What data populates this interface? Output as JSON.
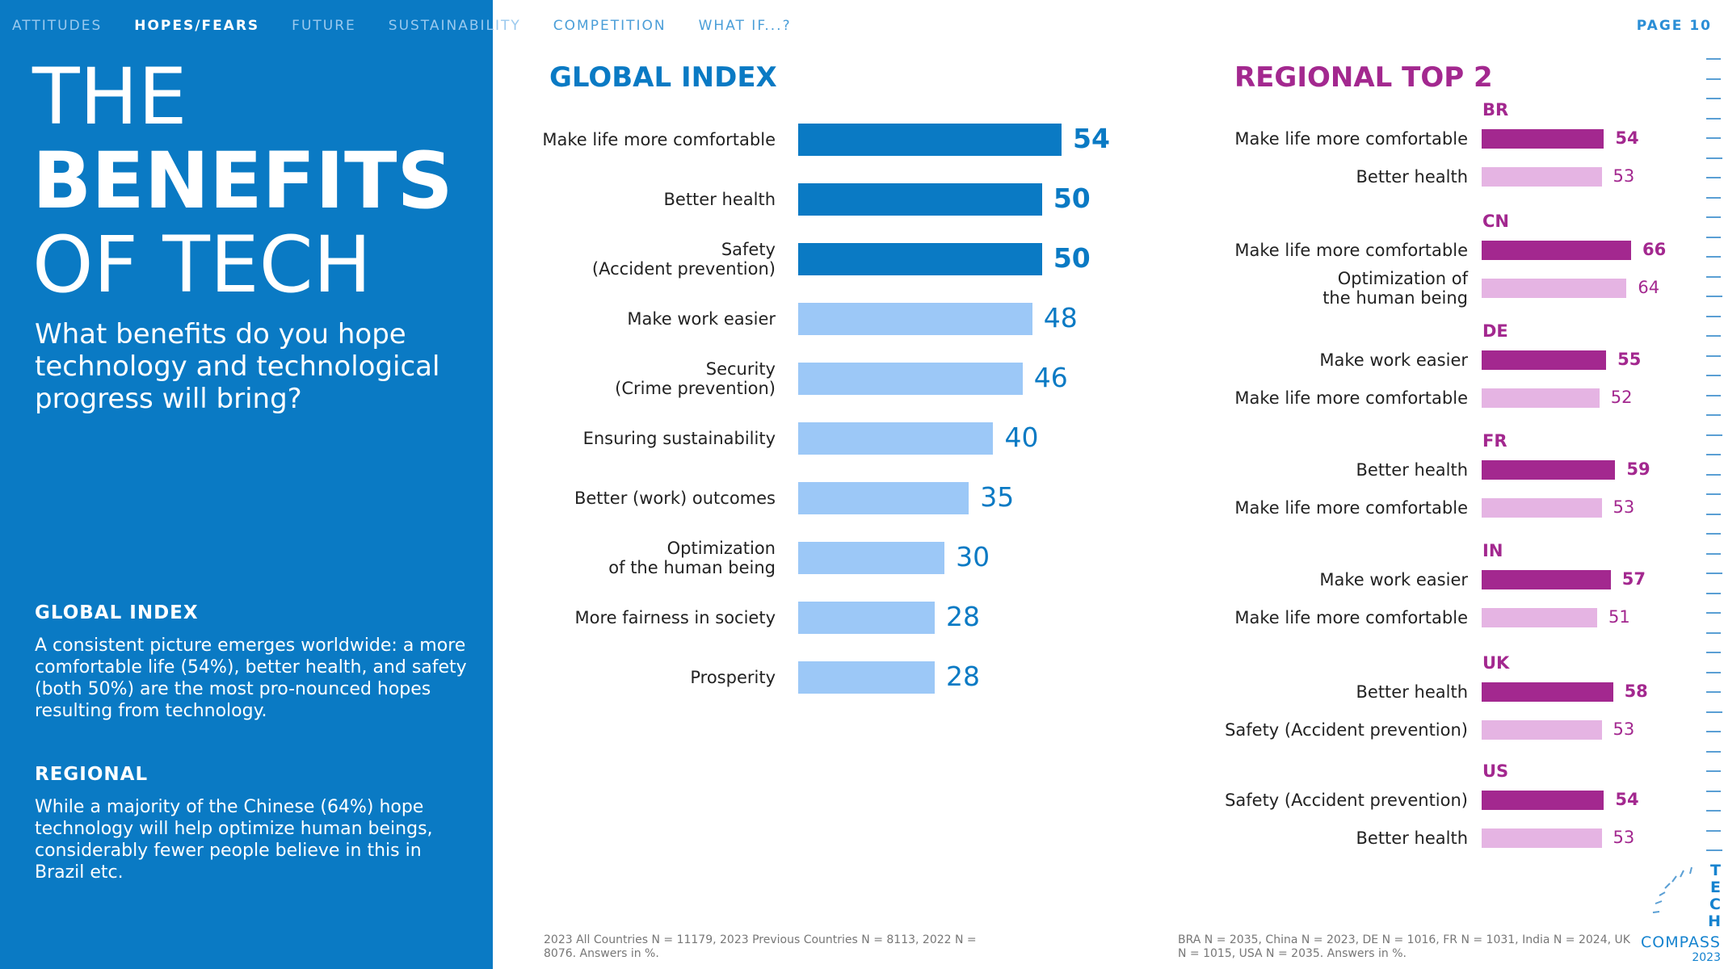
{
  "nav": {
    "items": [
      "ATTITUDES",
      "HOPES/FEARS",
      "FUTURE",
      "SUSTAINABILITY",
      "COMPETITION",
      "WHAT IF...?"
    ],
    "active_index": 1,
    "page_label": "PAGE",
    "page_number": "10"
  },
  "left": {
    "title_line1": "THE",
    "title_line2": "BENEFITS",
    "title_line3": "OF TECH",
    "subtitle": "What benefits do you hope technology and technological progress will bring?",
    "global_heading": "GLOBAL INDEX",
    "global_text": "A consistent picture emerges worldwide: a more comfortable life (54%), better health, and safety (both 50%) are the most pro-nounced hopes resulting from technology.",
    "regional_heading": "REGIONAL",
    "regional_text": "While a majority of the Chinese (64%) hope technology will help optimize human beings, considerably fewer people believe in this in Brazil etc."
  },
  "colors": {
    "blue_dark": "#0a7ac4",
    "blue_light": "#9cc8f7",
    "purple_dark": "#a3288f",
    "purple_light": "#e5b4e3"
  },
  "chart_data": [
    {
      "type": "bar",
      "title": "GLOBAL INDEX",
      "orientation": "horizontal",
      "categories": [
        "Make life more comfortable",
        "Better health",
        "Safety\n(Accident prevention)",
        "Make work easier",
        "Security\n(Crime prevention)",
        "Ensuring sustainability",
        "Better (work) outcomes",
        "Optimization\nof the human being",
        "More fairness in society",
        "Prosperity"
      ],
      "values": [
        54,
        50,
        50,
        48,
        46,
        40,
        35,
        30,
        28,
        28
      ],
      "highlight": [
        true,
        true,
        true,
        false,
        false,
        false,
        false,
        false,
        false,
        false
      ],
      "xlim": [
        0,
        54
      ],
      "footnote": "2023 All Countries N = 11179, 2023 Previous Countries N = 8113, 2022 N = 8076. Answers in %."
    },
    {
      "type": "bar",
      "title": "REGIONAL TOP 2",
      "orientation": "horizontal",
      "xlim": [
        0,
        66
      ],
      "groups": [
        {
          "country": "BR",
          "items": [
            {
              "label": "Make life more comfortable",
              "value": 54
            },
            {
              "label": "Better health",
              "value": 53
            }
          ]
        },
        {
          "country": "CN",
          "items": [
            {
              "label": "Make life more comfortable",
              "value": 66
            },
            {
              "label": "Optimization of\nthe human being",
              "value": 64
            }
          ]
        },
        {
          "country": "DE",
          "items": [
            {
              "label": "Make work easier",
              "value": 55
            },
            {
              "label": "Make life more comfortable",
              "value": 52
            }
          ]
        },
        {
          "country": "FR",
          "items": [
            {
              "label": "Better health",
              "value": 59
            },
            {
              "label": "Make life more comfortable",
              "value": 53
            }
          ]
        },
        {
          "country": "IN",
          "items": [
            {
              "label": "Make work easier",
              "value": 57
            },
            {
              "label": "Make life more comfortable",
              "value": 51
            }
          ]
        },
        {
          "country": "UK",
          "items": [
            {
              "label": "Better health",
              "value": 58
            },
            {
              "label": "Safety (Accident prevention)",
              "value": 53
            }
          ]
        },
        {
          "country": "US",
          "items": [
            {
              "label": "Safety (Accident prevention)",
              "value": 54
            },
            {
              "label": "Better health",
              "value": 53
            }
          ]
        }
      ],
      "footnote": "BRA N = 2035, China N = 2023, DE N = 1016, FR N = 1031, India N = 2024, UK N = 1015, USA N = 2035. Answers in %."
    }
  ],
  "logo": {
    "letters": "TECH",
    "word": "COMPASS",
    "year": "2023"
  }
}
